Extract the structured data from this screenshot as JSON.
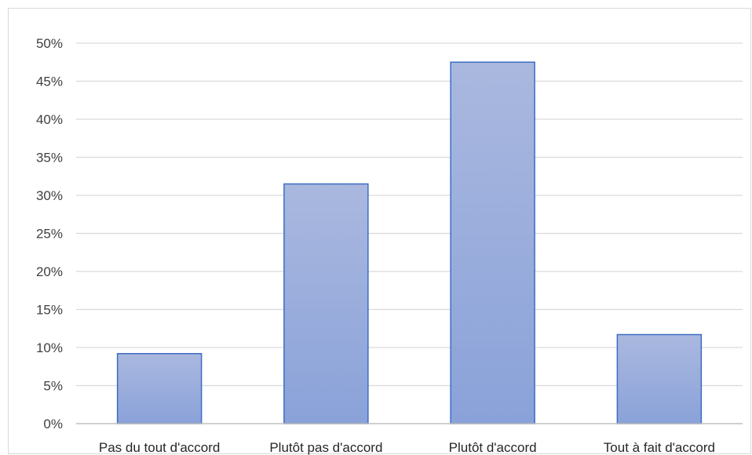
{
  "chart_data": {
    "type": "bar",
    "categories": [
      "Pas du tout d'accord",
      "Plutôt pas d'accord",
      "Plutôt d'accord",
      "Tout à fait d'accord"
    ],
    "values": [
      9.2,
      31.5,
      47.5,
      11.7
    ],
    "value_unit": "%",
    "ylim": [
      0,
      50
    ],
    "yticks": [
      0,
      5,
      10,
      15,
      20,
      25,
      30,
      35,
      40,
      45,
      50
    ],
    "ytick_labels": [
      "0%",
      "5%",
      "10%",
      "15%",
      "20%",
      "25%",
      "30%",
      "35%",
      "40%",
      "45%",
      "50%"
    ],
    "grid": true,
    "legend": "none",
    "colors": {
      "bar_top": "#aab8df",
      "bar_bottom": "#8aa2d9",
      "bar_border": "#3d6cc4",
      "grid": "#d9d9d9",
      "axis": "#bfbfbf"
    }
  }
}
